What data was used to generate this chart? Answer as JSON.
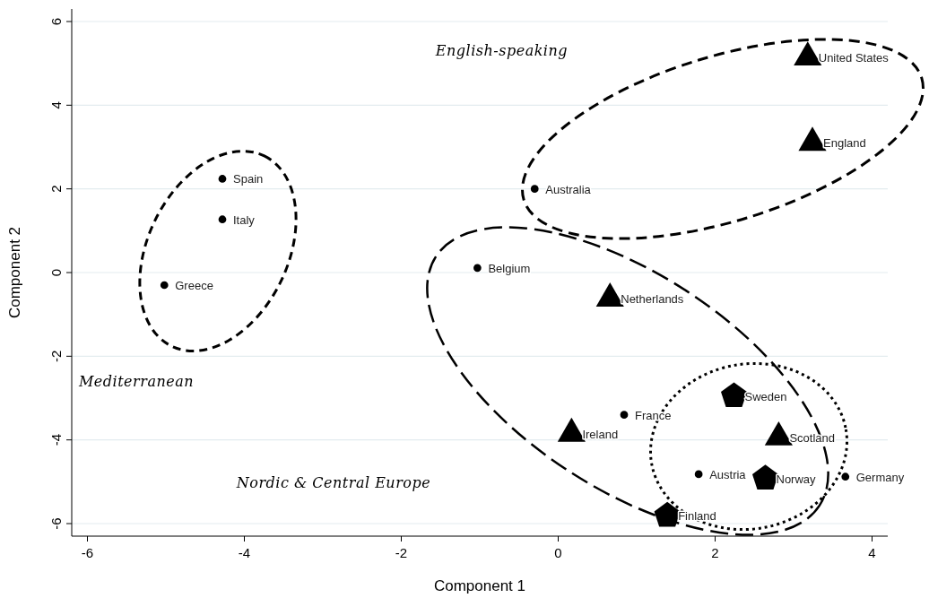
{
  "chart_data": {
    "type": "scatter",
    "xlabel": "Component 1",
    "ylabel": "Component 2",
    "xlim": [
      -6.2,
      4.2
    ],
    "ylim": [
      -6.3,
      6.3
    ],
    "xticks": [
      -6,
      -4,
      -2,
      0,
      2,
      4
    ],
    "yticks": [
      -6,
      -4,
      -2,
      0,
      2,
      4,
      6
    ],
    "grid": "y",
    "series": [
      {
        "marker": "circle",
        "color": "#000000",
        "x": [
          -0.3,
          -4.28,
          -4.28,
          -5.02,
          -1.03,
          0.84,
          1.79,
          3.66
        ],
        "values": [
          2.0,
          2.24,
          1.27,
          -0.3,
          0.11,
          -3.4,
          -4.82,
          -4.88
        ]
      },
      {
        "marker": "triangle",
        "color": "#000000",
        "x": [
          3.18,
          3.24,
          0.66,
          0.17,
          2.81
        ],
        "values": [
          5.14,
          3.1,
          -0.62,
          -3.85,
          -3.94
        ]
      },
      {
        "color": "#000000",
        "x": [
          2.24,
          2.64,
          1.39
        ],
        "values": [
          -2.95,
          -4.92,
          -5.81
        ]
      }
    ],
    "annotations": [
      {
        "text": "Australia",
        "x": -0.3,
        "y": 2.0
      },
      {
        "text": "Spain",
        "x": -4.28,
        "y": 2.24
      },
      {
        "text": "Italy",
        "x": -4.28,
        "y": 1.27
      },
      {
        "text": "Greece",
        "x": -5.02,
        "y": -0.3
      },
      {
        "text": "Belgium",
        "x": -1.03,
        "y": 0.11
      },
      {
        "text": "France",
        "x": 0.84,
        "y": -3.4
      },
      {
        "text": "Austria",
        "x": 1.79,
        "y": -4.82
      },
      {
        "text": "Germany",
        "x": 3.66,
        "y": -4.88
      },
      {
        "text": "United States",
        "x": 3.18,
        "y": 5.14
      },
      {
        "text": "England",
        "x": 3.24,
        "y": 3.1
      },
      {
        "text": "Netherlands",
        "x": 0.66,
        "y": -0.62
      },
      {
        "text": "Ireland",
        "x": 0.17,
        "y": -3.85
      },
      {
        "text": "Scotland",
        "x": 2.81,
        "y": -3.94
      },
      {
        "text": "Sweden",
        "x": 2.24,
        "y": -2.95
      },
      {
        "text": "Norway",
        "x": 2.64,
        "y": -4.92
      },
      {
        "text": "Finland",
        "x": 1.39,
        "y": -5.81
      },
      "English-speaking",
      "Mediterranean",
      "Nordic & Central Europe"
    ]
  }
}
